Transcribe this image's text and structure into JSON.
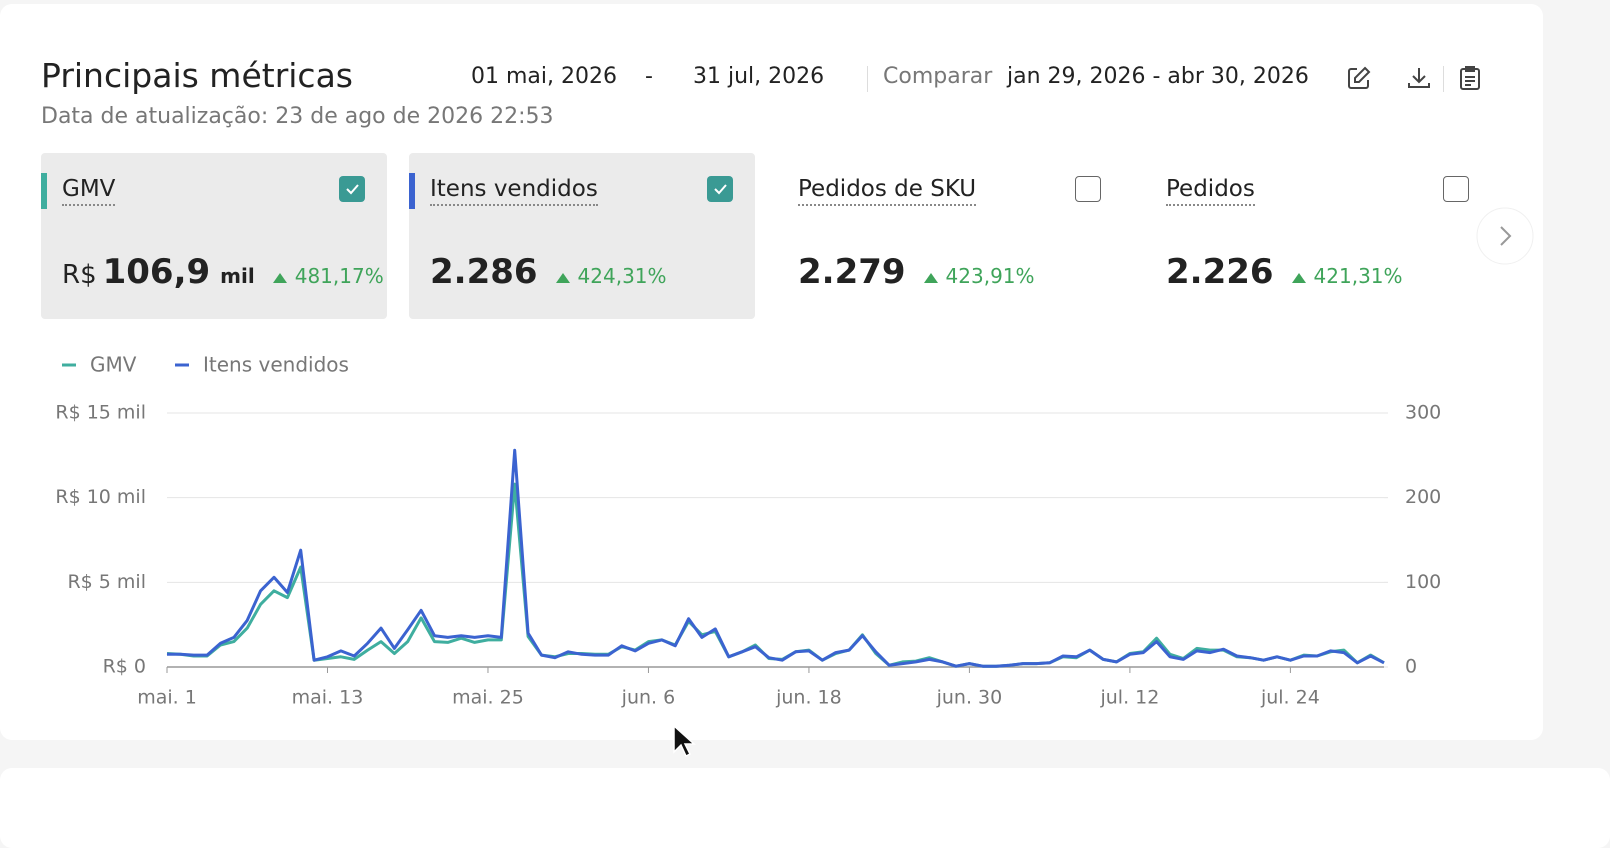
{
  "header": {
    "title": "Principais métricas",
    "start_date": "01 mai, 2026",
    "date_separator": "-",
    "end_date": "31 jul, 2026",
    "compare_label": "Comparar",
    "compare_range": "jan 29, 2026 - abr 30, 2026",
    "updated": "Data de atualização: 23 de ago de 2026 22:53"
  },
  "metrics": [
    {
      "label": "GMV",
      "prefix": "R$",
      "value": "106,9",
      "suffix": "mil",
      "change": "481,17%",
      "selected": true
    },
    {
      "label": "Itens vendidos",
      "value": "2.286",
      "change": "424,31%",
      "selected": true
    },
    {
      "label": "Pedidos de SKU",
      "value": "2.279",
      "change": "423,91%",
      "selected": false
    },
    {
      "label": "Pedidos",
      "value": "2.226",
      "change": "421,31%",
      "selected": false
    }
  ],
  "chart_data": {
    "type": "line",
    "categories": [
      "mai. 1",
      null,
      null,
      null,
      null,
      null,
      null,
      null,
      null,
      null,
      null,
      null,
      "mai. 13",
      null,
      null,
      null,
      null,
      null,
      null,
      null,
      null,
      null,
      null,
      null,
      "mai. 25",
      null,
      null,
      null,
      null,
      null,
      null,
      null,
      null,
      null,
      null,
      null,
      "jun. 6",
      null,
      null,
      null,
      null,
      null,
      null,
      null,
      null,
      null,
      null,
      null,
      "jun. 18",
      null,
      null,
      null,
      null,
      null,
      null,
      null,
      null,
      null,
      null,
      null,
      "jun. 30",
      null,
      null,
      null,
      null,
      null,
      null,
      null,
      null,
      null,
      null,
      null,
      "jul. 12",
      null,
      null,
      null,
      null,
      null,
      null,
      null,
      null,
      null,
      null,
      null,
      "jul. 24",
      null,
      null,
      null,
      null,
      null,
      null,
      null
    ],
    "series": [
      {
        "name": "GMV",
        "color": "#3fae9f",
        "values": [
          800,
          750,
          650,
          650,
          1300,
          1500,
          2300,
          3700,
          4500,
          4100,
          5900,
          400,
          500,
          600,
          450,
          1000,
          1500,
          800,
          1500,
          2900,
          1500,
          1450,
          1700,
          1450,
          1600,
          1600,
          10800,
          1800,
          700,
          600,
          800,
          800,
          750,
          750,
          1200,
          1000,
          1500,
          1600,
          1300,
          2700,
          1900,
          2100,
          600,
          900,
          1300,
          500,
          450,
          900,
          1000,
          400,
          800,
          1000,
          1900,
          800,
          100,
          300,
          350,
          550,
          300,
          50,
          200,
          50,
          50,
          100,
          200,
          200,
          250,
          600,
          550,
          1000,
          450,
          300,
          800,
          900,
          1700,
          750,
          500,
          1100,
          1000,
          1000,
          600,
          550,
          400,
          600,
          400,
          700,
          650,
          900,
          1000,
          250,
          700,
          250
        ]
      },
      {
        "name": "Itens vendidos",
        "color": "#3b63d0",
        "axis": "y2",
        "values": [
          15,
          15,
          14,
          14,
          28,
          35,
          55,
          90,
          106,
          88,
          138,
          8,
          12,
          19,
          13,
          28,
          46,
          22,
          44,
          67,
          37,
          35,
          37,
          35,
          37,
          35,
          256,
          40,
          14,
          11,
          18,
          15,
          14,
          14,
          25,
          19,
          28,
          32,
          25,
          57,
          35,
          45,
          12,
          18,
          24,
          11,
          8,
          18,
          19,
          8,
          17,
          20,
          37,
          18,
          2,
          4,
          6,
          9,
          6,
          1,
          4,
          1,
          1,
          2,
          4,
          4,
          5,
          13,
          12,
          20,
          9,
          6,
          15,
          17,
          30,
          12,
          9,
          19,
          17,
          21,
          13,
          11,
          8,
          12,
          8,
          13,
          13,
          19,
          17,
          5,
          13,
          5
        ]
      }
    ],
    "ylim": [
      0,
      15000
    ],
    "yticks": [
      {
        "value": 0,
        "label": "R$ 0"
      },
      {
        "value": 5000,
        "label": "R$ 5 mil"
      },
      {
        "value": 10000,
        "label": "R$ 10 mil"
      },
      {
        "value": 15000,
        "label": "R$ 15 mil"
      }
    ],
    "y2lim": [
      0,
      300
    ],
    "y2ticks": [
      0,
      100,
      200,
      300
    ],
    "grid": true
  }
}
